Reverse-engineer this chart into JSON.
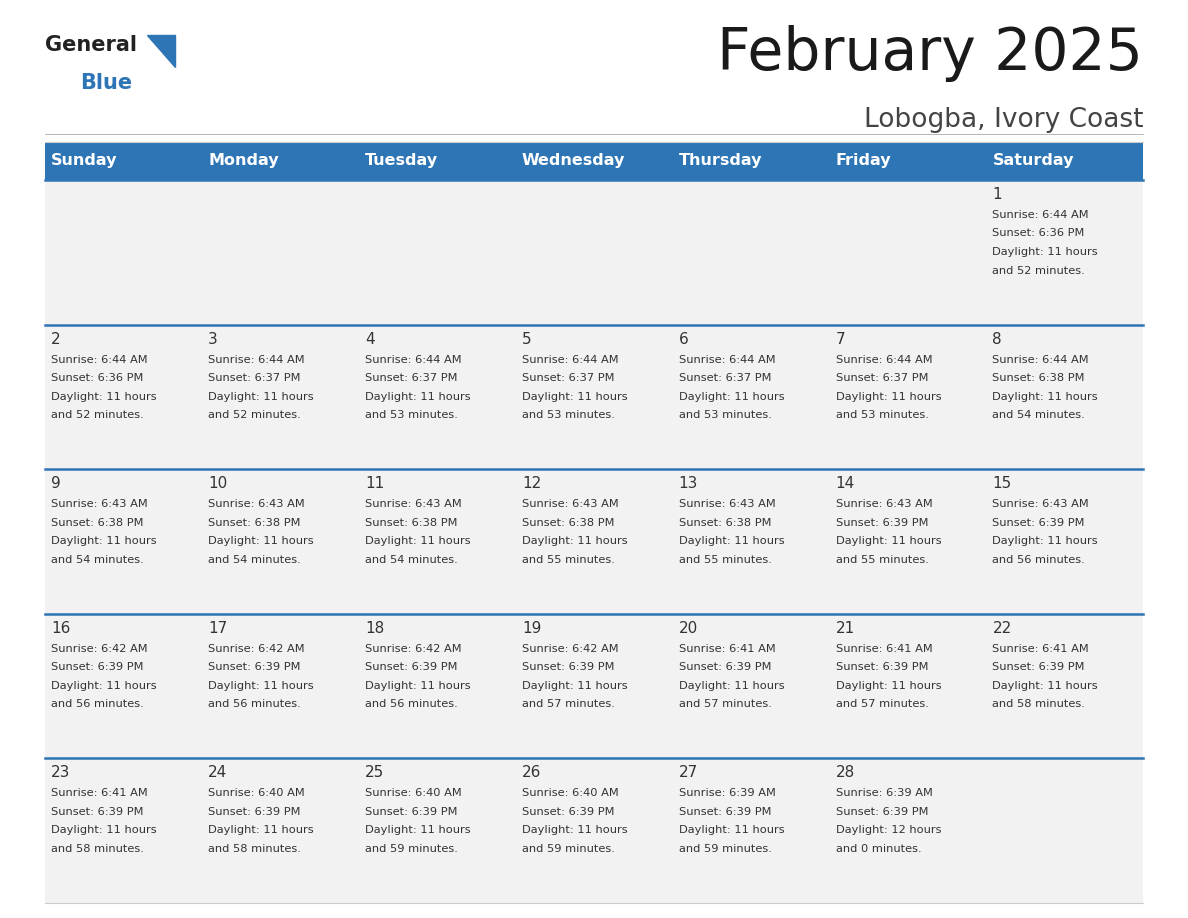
{
  "title": "February 2025",
  "subtitle": "Lobogba, Ivory Coast",
  "header_bg": "#2E75B6",
  "header_text_color": "#FFFFFF",
  "cell_bg": "#F2F2F2",
  "text_color": "#333333",
  "divider_color": "#2E75B6",
  "days_of_week": [
    "Sunday",
    "Monday",
    "Tuesday",
    "Wednesday",
    "Thursday",
    "Friday",
    "Saturday"
  ],
  "calendar_data": [
    [
      {
        "day": null,
        "sunrise": null,
        "sunset": null,
        "daylight": ""
      },
      {
        "day": null,
        "sunrise": null,
        "sunset": null,
        "daylight": ""
      },
      {
        "day": null,
        "sunrise": null,
        "sunset": null,
        "daylight": ""
      },
      {
        "day": null,
        "sunrise": null,
        "sunset": null,
        "daylight": ""
      },
      {
        "day": null,
        "sunrise": null,
        "sunset": null,
        "daylight": ""
      },
      {
        "day": null,
        "sunrise": null,
        "sunset": null,
        "daylight": ""
      },
      {
        "day": 1,
        "sunrise": "6:44 AM",
        "sunset": "6:36 PM",
        "daylight": "11 hours\nand 52 minutes."
      }
    ],
    [
      {
        "day": 2,
        "sunrise": "6:44 AM",
        "sunset": "6:36 PM",
        "daylight": "11 hours\nand 52 minutes."
      },
      {
        "day": 3,
        "sunrise": "6:44 AM",
        "sunset": "6:37 PM",
        "daylight": "11 hours\nand 52 minutes."
      },
      {
        "day": 4,
        "sunrise": "6:44 AM",
        "sunset": "6:37 PM",
        "daylight": "11 hours\nand 53 minutes."
      },
      {
        "day": 5,
        "sunrise": "6:44 AM",
        "sunset": "6:37 PM",
        "daylight": "11 hours\nand 53 minutes."
      },
      {
        "day": 6,
        "sunrise": "6:44 AM",
        "sunset": "6:37 PM",
        "daylight": "11 hours\nand 53 minutes."
      },
      {
        "day": 7,
        "sunrise": "6:44 AM",
        "sunset": "6:37 PM",
        "daylight": "11 hours\nand 53 minutes."
      },
      {
        "day": 8,
        "sunrise": "6:44 AM",
        "sunset": "6:38 PM",
        "daylight": "11 hours\nand 54 minutes."
      }
    ],
    [
      {
        "day": 9,
        "sunrise": "6:43 AM",
        "sunset": "6:38 PM",
        "daylight": "11 hours\nand 54 minutes."
      },
      {
        "day": 10,
        "sunrise": "6:43 AM",
        "sunset": "6:38 PM",
        "daylight": "11 hours\nand 54 minutes."
      },
      {
        "day": 11,
        "sunrise": "6:43 AM",
        "sunset": "6:38 PM",
        "daylight": "11 hours\nand 54 minutes."
      },
      {
        "day": 12,
        "sunrise": "6:43 AM",
        "sunset": "6:38 PM",
        "daylight": "11 hours\nand 55 minutes."
      },
      {
        "day": 13,
        "sunrise": "6:43 AM",
        "sunset": "6:38 PM",
        "daylight": "11 hours\nand 55 minutes."
      },
      {
        "day": 14,
        "sunrise": "6:43 AM",
        "sunset": "6:39 PM",
        "daylight": "11 hours\nand 55 minutes."
      },
      {
        "day": 15,
        "sunrise": "6:43 AM",
        "sunset": "6:39 PM",
        "daylight": "11 hours\nand 56 minutes."
      }
    ],
    [
      {
        "day": 16,
        "sunrise": "6:42 AM",
        "sunset": "6:39 PM",
        "daylight": "11 hours\nand 56 minutes."
      },
      {
        "day": 17,
        "sunrise": "6:42 AM",
        "sunset": "6:39 PM",
        "daylight": "11 hours\nand 56 minutes."
      },
      {
        "day": 18,
        "sunrise": "6:42 AM",
        "sunset": "6:39 PM",
        "daylight": "11 hours\nand 56 minutes."
      },
      {
        "day": 19,
        "sunrise": "6:42 AM",
        "sunset": "6:39 PM",
        "daylight": "11 hours\nand 57 minutes."
      },
      {
        "day": 20,
        "sunrise": "6:41 AM",
        "sunset": "6:39 PM",
        "daylight": "11 hours\nand 57 minutes."
      },
      {
        "day": 21,
        "sunrise": "6:41 AM",
        "sunset": "6:39 PM",
        "daylight": "11 hours\nand 57 minutes."
      },
      {
        "day": 22,
        "sunrise": "6:41 AM",
        "sunset": "6:39 PM",
        "daylight": "11 hours\nand 58 minutes."
      }
    ],
    [
      {
        "day": 23,
        "sunrise": "6:41 AM",
        "sunset": "6:39 PM",
        "daylight": "11 hours\nand 58 minutes."
      },
      {
        "day": 24,
        "sunrise": "6:40 AM",
        "sunset": "6:39 PM",
        "daylight": "11 hours\nand 58 minutes."
      },
      {
        "day": 25,
        "sunrise": "6:40 AM",
        "sunset": "6:39 PM",
        "daylight": "11 hours\nand 59 minutes."
      },
      {
        "day": 26,
        "sunrise": "6:40 AM",
        "sunset": "6:39 PM",
        "daylight": "11 hours\nand 59 minutes."
      },
      {
        "day": 27,
        "sunrise": "6:39 AM",
        "sunset": "6:39 PM",
        "daylight": "11 hours\nand 59 minutes."
      },
      {
        "day": 28,
        "sunrise": "6:39 AM",
        "sunset": "6:39 PM",
        "daylight": "12 hours\nand 0 minutes."
      },
      {
        "day": null,
        "sunrise": null,
        "sunset": null,
        "daylight": ""
      }
    ]
  ]
}
